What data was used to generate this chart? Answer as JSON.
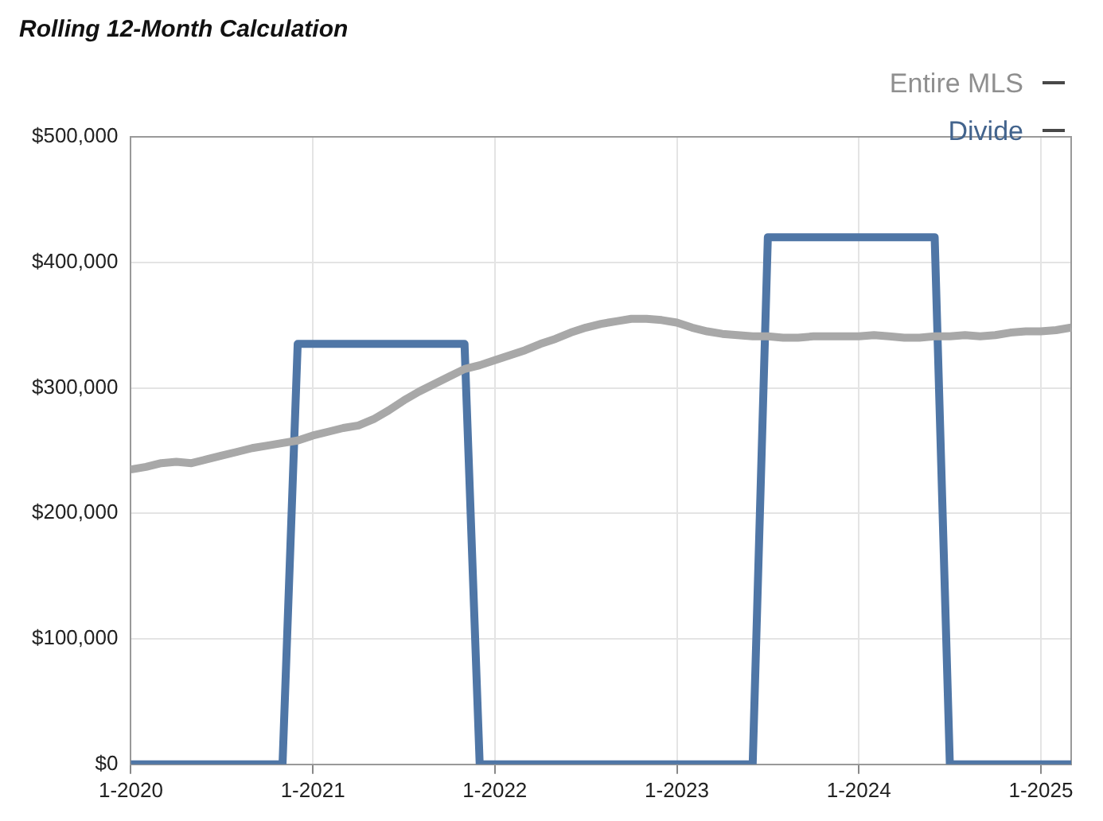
{
  "chart_data": {
    "type": "line",
    "title": "Rolling 12-Month Calculation",
    "categories": [
      "1-2020",
      null,
      null,
      null,
      null,
      null,
      null,
      null,
      null,
      null,
      null,
      null,
      "1-2021",
      null,
      null,
      null,
      null,
      null,
      null,
      null,
      null,
      null,
      null,
      null,
      "1-2022",
      null,
      null,
      null,
      null,
      null,
      null,
      null,
      null,
      null,
      null,
      null,
      "1-2023",
      null,
      null,
      null,
      null,
      null,
      null,
      null,
      null,
      null,
      null,
      null,
      "1-2024",
      null,
      null,
      null,
      null,
      null,
      null,
      null,
      null,
      null,
      null,
      null,
      "1-2025",
      null,
      null
    ],
    "series": [
      {
        "name": "Entire MLS",
        "color": "#a8a8a8",
        "values": [
          235000,
          237000,
          240000,
          241000,
          240000,
          243000,
          246000,
          249000,
          252000,
          254000,
          256000,
          258000,
          262000,
          265000,
          268000,
          270000,
          275000,
          282000,
          290000,
          297000,
          303000,
          309000,
          315000,
          318000,
          322000,
          326000,
          330000,
          335000,
          339000,
          344000,
          348000,
          351000,
          353000,
          355000,
          355000,
          354000,
          352000,
          348000,
          345000,
          343000,
          342000,
          341000,
          341000,
          340000,
          340000,
          341000,
          341000,
          341000,
          341000,
          342000,
          341000,
          340000,
          340000,
          341000,
          341000,
          342000,
          341000,
          342000,
          344000,
          345000,
          345000,
          346000,
          348000
        ]
      },
      {
        "name": "Divide",
        "color": "#4f76a6",
        "values": [
          0,
          0,
          0,
          0,
          0,
          0,
          0,
          0,
          0,
          0,
          0,
          335000,
          335000,
          335000,
          335000,
          335000,
          335000,
          335000,
          335000,
          335000,
          335000,
          335000,
          335000,
          0,
          0,
          0,
          0,
          0,
          0,
          0,
          0,
          0,
          0,
          0,
          0,
          0,
          0,
          0,
          0,
          0,
          0,
          0,
          420000,
          420000,
          420000,
          420000,
          420000,
          420000,
          420000,
          420000,
          420000,
          420000,
          420000,
          420000,
          0,
          0,
          0,
          0,
          0,
          0,
          0,
          0,
          0
        ]
      }
    ],
    "ylim": [
      0,
      500000
    ],
    "yticks": [
      {
        "value": 0,
        "label": "$0"
      },
      {
        "value": 100000,
        "label": "$100,000"
      },
      {
        "value": 200000,
        "label": "$200,000"
      },
      {
        "value": 300000,
        "label": "$300,000"
      },
      {
        "value": 400000,
        "label": "$400,000"
      },
      {
        "value": 500000,
        "label": "$500,000"
      }
    ],
    "grid": true,
    "legend": "top right",
    "marker": "none",
    "line_style": "solid"
  }
}
